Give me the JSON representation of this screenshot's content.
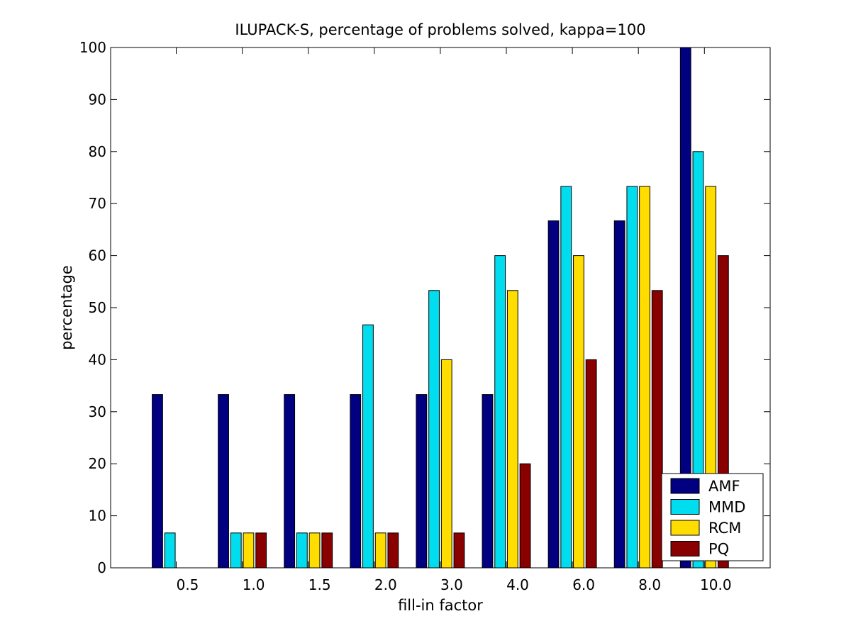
{
  "chart_data": {
    "type": "bar",
    "title": "ILUPACK-S, percentage of problems solved, kappa=100",
    "xlabel": "fill-in factor",
    "ylabel": "percentage",
    "categories": [
      "0.5",
      "1.0",
      "1.5",
      "2.0",
      "3.0",
      "4.0",
      "6.0",
      "8.0",
      "10.0"
    ],
    "ylim": [
      0,
      100
    ],
    "yticks": [
      0,
      10,
      20,
      30,
      40,
      50,
      60,
      70,
      80,
      90,
      100
    ],
    "grid": false,
    "legend_position": "bottom-right",
    "series": [
      {
        "name": "AMF",
        "color": "#000080",
        "values": [
          33.3,
          33.3,
          33.3,
          33.3,
          33.3,
          33.3,
          66.7,
          66.7,
          100
        ]
      },
      {
        "name": "MMD",
        "color": "#00DDEE",
        "values": [
          6.7,
          6.7,
          6.7,
          46.7,
          53.3,
          60.0,
          73.3,
          73.3,
          80.0
        ]
      },
      {
        "name": "RCM",
        "color": "#FFDD00",
        "values": [
          0,
          6.7,
          6.7,
          6.7,
          40.0,
          53.3,
          60.0,
          73.3,
          73.3
        ]
      },
      {
        "name": "PQ",
        "color": "#880000",
        "values": [
          0,
          6.7,
          6.7,
          6.7,
          6.7,
          20.0,
          40.0,
          53.3,
          60.0
        ]
      }
    ]
  }
}
